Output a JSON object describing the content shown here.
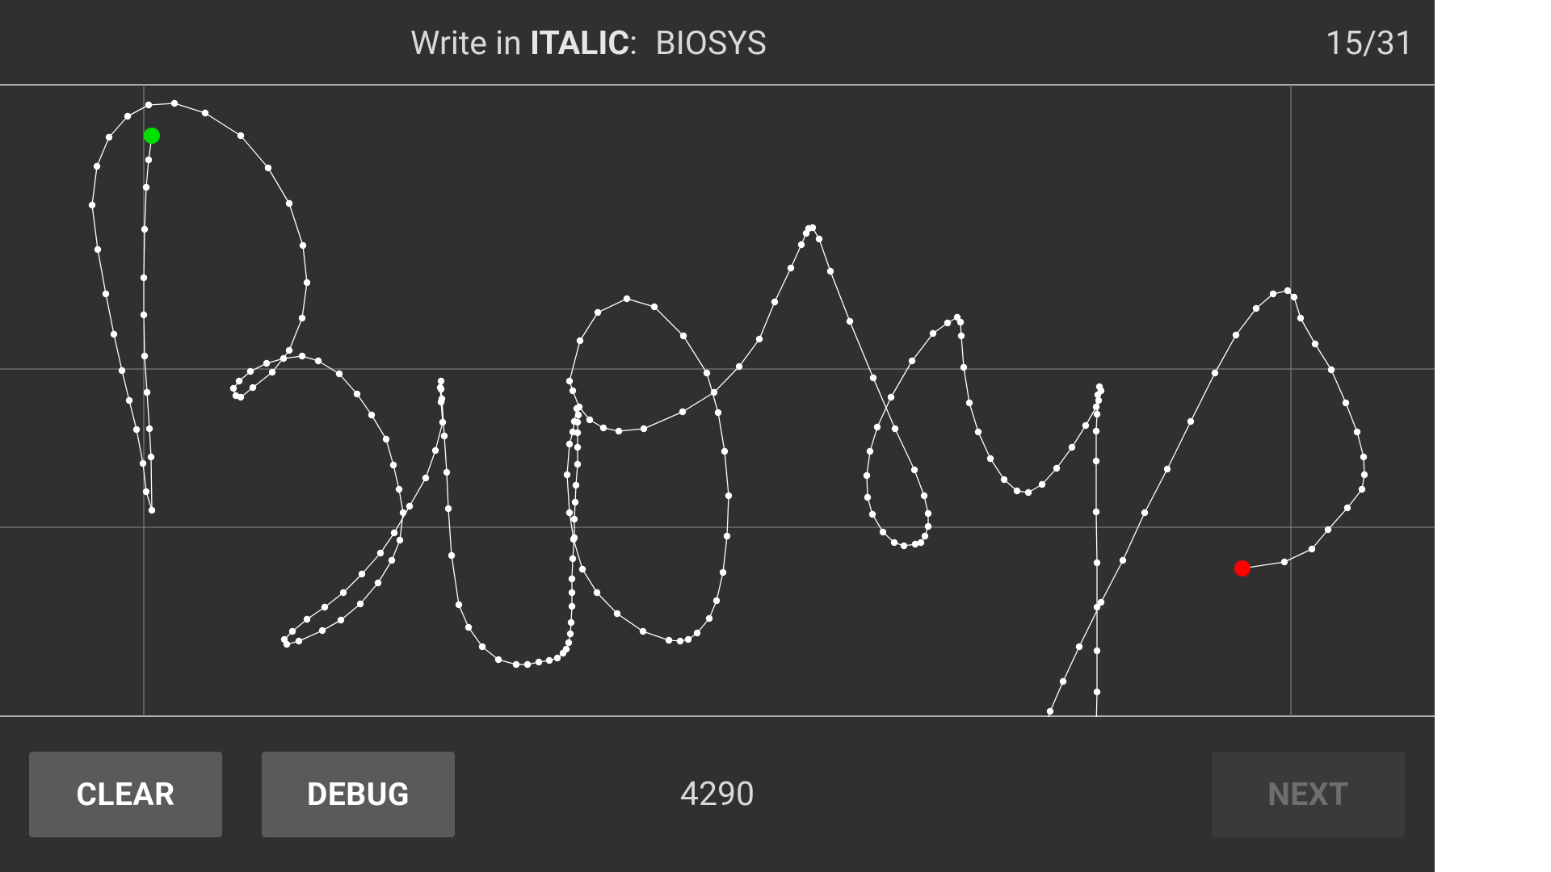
{
  "header": {
    "prompt_prefix": "Write in",
    "style_name": "ITALIC",
    "prompt_colon": ":",
    "target_word": "BIOSYS",
    "progress": "15/31"
  },
  "footer": {
    "clear_label": "CLEAR",
    "debug_label": "DEBUG",
    "counter": "4290",
    "next_label": "NEXT"
  },
  "colors": {
    "background": "#303030",
    "stroke": "#ffffff",
    "guide": "#8a8a8a",
    "start_marker": "#00e000",
    "end_marker": "#ff0000"
  }
}
